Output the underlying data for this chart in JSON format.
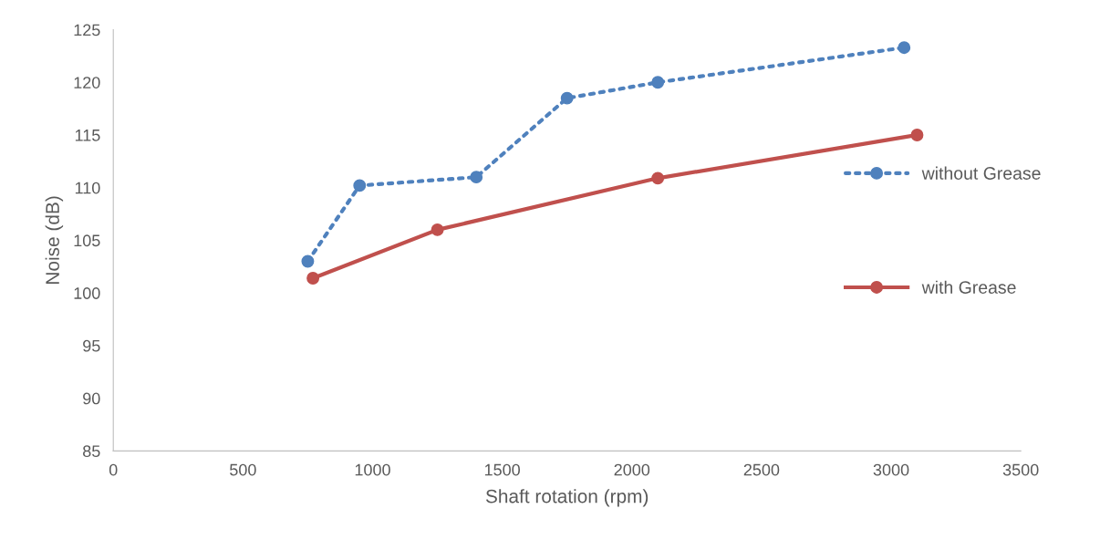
{
  "chart_data": {
    "type": "line",
    "xlabel": "Shaft rotation (rpm)",
    "ylabel": "Noise (dB)",
    "xlim": [
      0,
      3500
    ],
    "xticks": [
      0,
      500,
      1000,
      1500,
      2000,
      2500,
      3000,
      3500
    ],
    "ylim": [
      85,
      125
    ],
    "yticks": [
      85,
      90,
      95,
      100,
      105,
      110,
      115,
      120,
      125
    ],
    "grid": false,
    "legend": "right",
    "series": [
      {
        "name": "without Grease",
        "color": "#4f81bd",
        "x": [
          750,
          950,
          1400,
          1750,
          2100,
          3050
        ],
        "values": [
          103,
          110.2,
          111,
          118.5,
          120,
          123.3
        ],
        "marker": "circle",
        "line_style": "dotted"
      },
      {
        "name": "with Grease",
        "color": "#c0504d",
        "x": [
          770,
          1250,
          2100,
          3100
        ],
        "values": [
          101.4,
          106,
          110.9,
          115
        ],
        "marker": "circle",
        "line_style": "solid"
      }
    ]
  }
}
